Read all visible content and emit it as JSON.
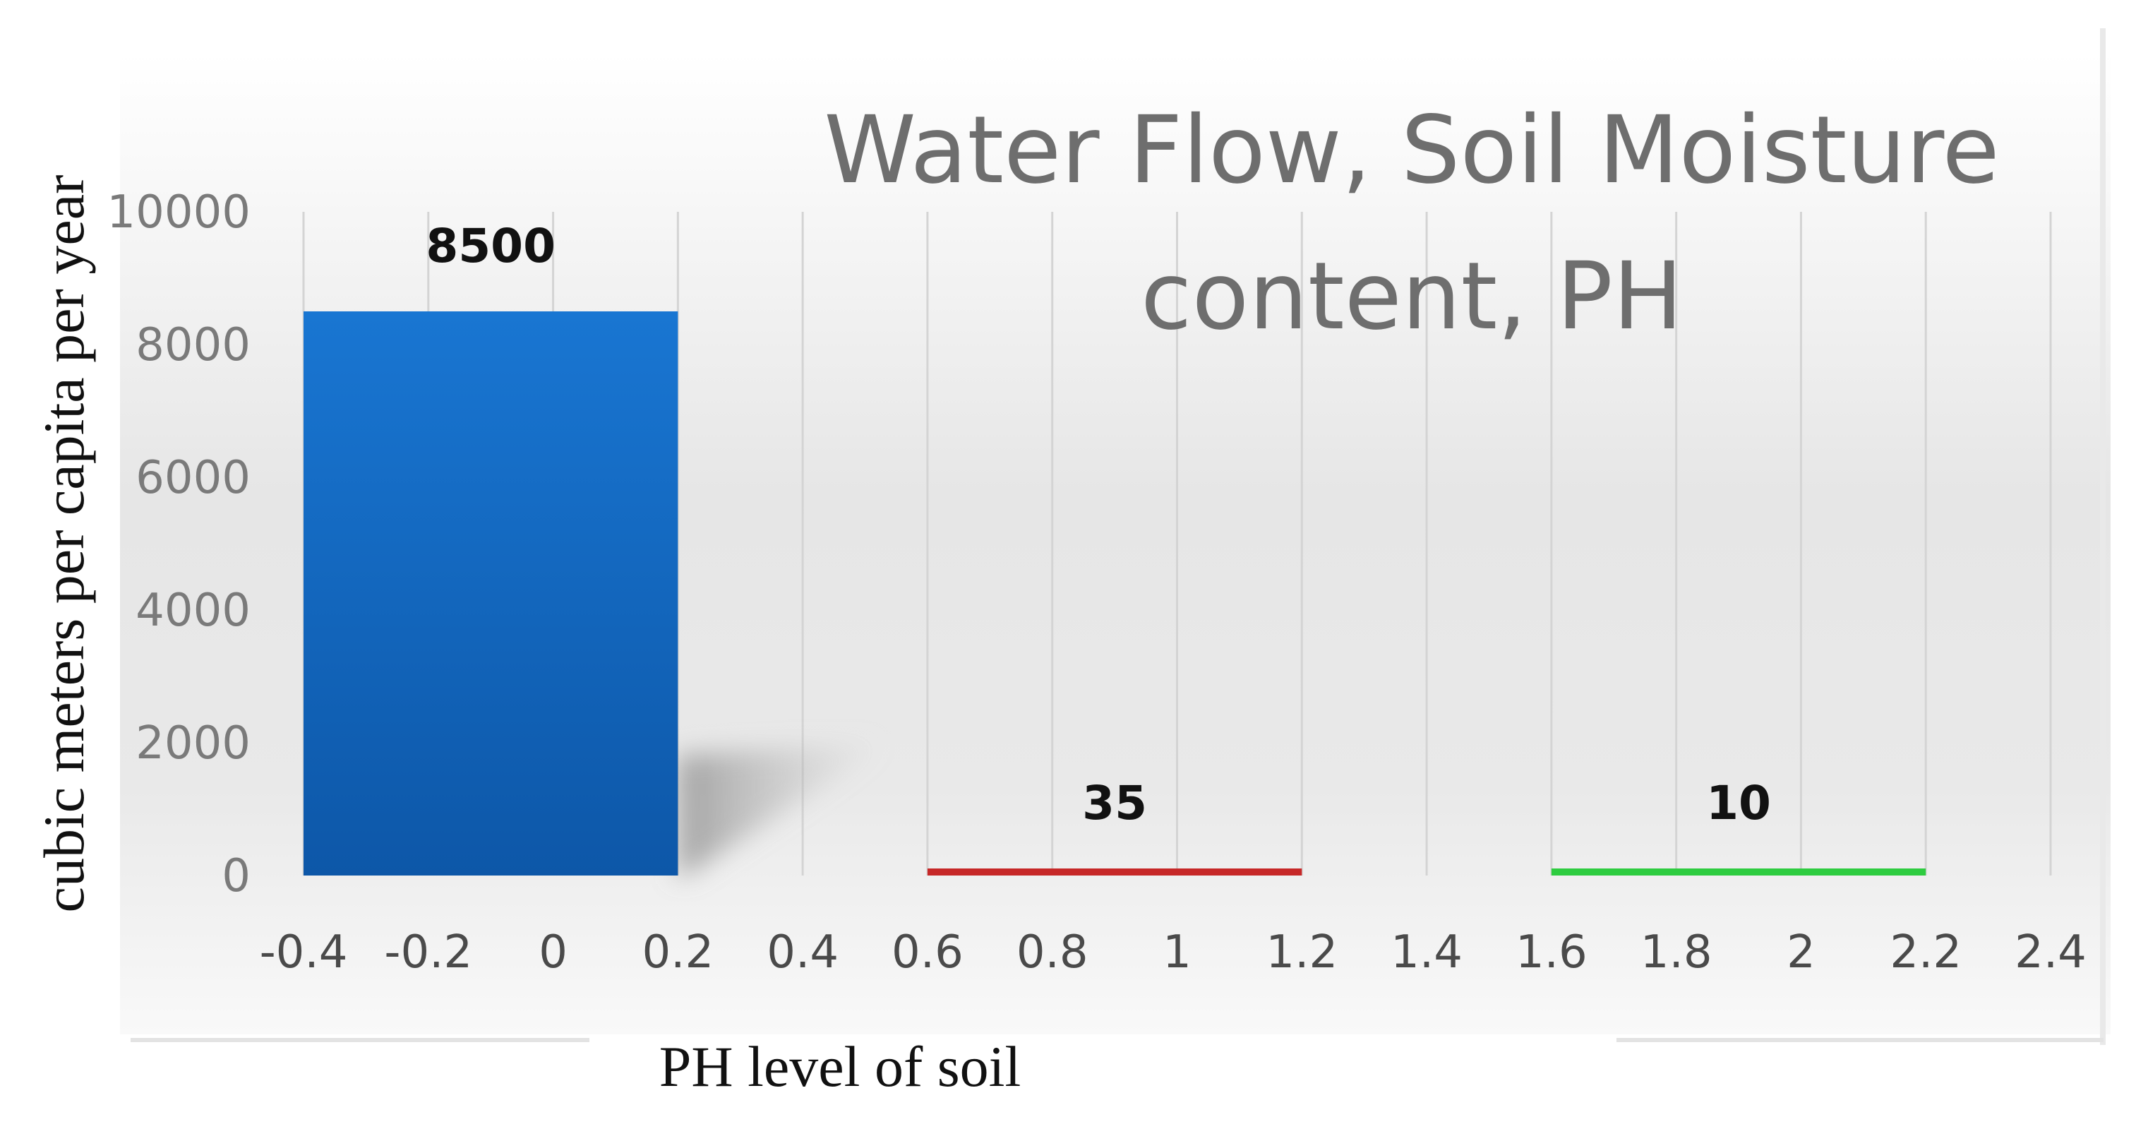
{
  "chart_data": {
    "type": "bar",
    "title_lines": [
      "Water Flow, Soil Moisture",
      "content, PH"
    ],
    "xlabel": "PH level of soil",
    "ylabel": "cubic meters per capita per year",
    "ylim": [
      0,
      10000
    ],
    "yticks": [
      "0",
      "2000",
      "4000",
      "6000",
      "8000",
      "10000"
    ],
    "xticks": [
      "-0.4",
      "-0.2",
      "0",
      "0.2",
      "0.4",
      "0.6",
      "0.8",
      "1",
      "1.2",
      "1.4",
      "1.6",
      "1.8",
      "2",
      "2.2",
      "2.4"
    ],
    "bars": [
      {
        "x_start": -0.4,
        "x_end": 0.2,
        "value": 8500,
        "label": "8500",
        "color": "#1565c0"
      },
      {
        "x_start": 0.6,
        "x_end": 1.2,
        "value": 35,
        "label": "35",
        "color": "#c62828"
      },
      {
        "x_start": 1.6,
        "x_end": 2.2,
        "value": 10,
        "label": "10",
        "color": "#2ecc40"
      }
    ],
    "grid": true
  }
}
